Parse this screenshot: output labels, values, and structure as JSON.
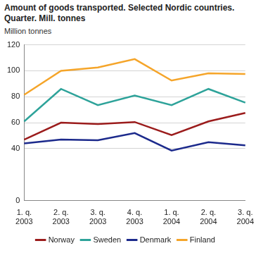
{
  "chart_data": {
    "type": "line",
    "title": [
      "Amount of goods transported. Selected Nordic countries.",
      "Quarter. Mill. tonnes"
    ],
    "y_label": "Million tonnes",
    "categories": [
      "1. q. 2003",
      "2. q. 2003",
      "3. q. 2003",
      "4. q. 2003",
      "1. q. 2004",
      "2. q. 2004",
      "3. q. 2004"
    ],
    "series": [
      {
        "name": "Norway",
        "color": "#9b1c1c",
        "values": [
          47,
          60,
          59,
          60.5,
          50.5,
          61,
          67.5
        ]
      },
      {
        "name": "Sweden",
        "color": "#2ea39a",
        "values": [
          61,
          86,
          73.5,
          81,
          73.5,
          86,
          75.5
        ]
      },
      {
        "name": "Denmark",
        "color": "#1c2a8c",
        "values": [
          44,
          47,
          46.5,
          52,
          38.5,
          45,
          42.5
        ]
      },
      {
        "name": "Finland",
        "color": "#f5a52a",
        "values": [
          81.5,
          100,
          102.5,
          109,
          92.5,
          98,
          97.5
        ]
      }
    ],
    "ylim": [
      0,
      120
    ],
    "yticks": [
      0,
      40,
      60,
      80,
      100,
      120
    ],
    "grid": true,
    "legend": "bottom"
  }
}
